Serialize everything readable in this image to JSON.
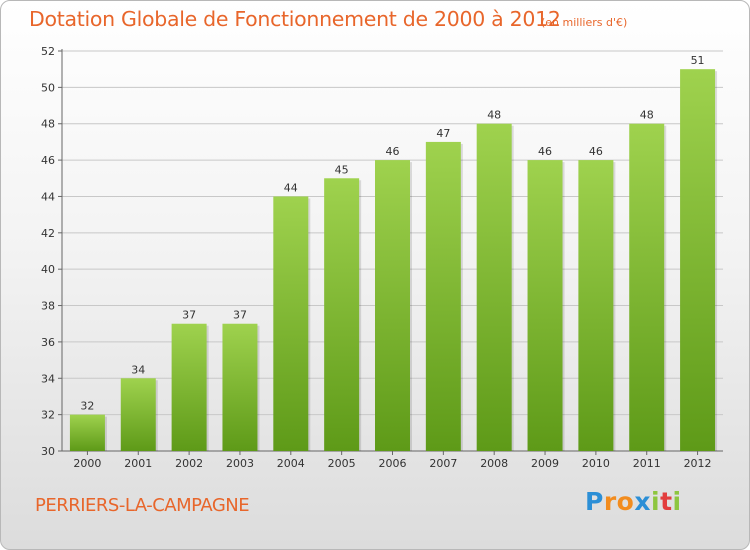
{
  "header": {
    "title": "Dotation Globale de Fonctionnement de 2000 à 2012",
    "unit": "(en milliers d'€)"
  },
  "footer": {
    "commune": "PERRIERS-LA-CAMPAGNE",
    "logo_letters": [
      "P",
      "r",
      "o",
      "x",
      "i",
      "t",
      "i"
    ],
    "logo_colors": [
      "#2c8fd6",
      "#f28c1e",
      "#f28c1e",
      "#2c8fd6",
      "#8dc63f",
      "#e23d3d",
      "#8dc63f"
    ]
  },
  "colors": {
    "title": "#e8662b",
    "bar_top": "#9fd24e",
    "bar_bottom": "#5e9a18",
    "grid": "#c8c8c8"
  },
  "chart_data": {
    "type": "bar",
    "categories": [
      "2000",
      "2001",
      "2002",
      "2003",
      "2004",
      "2005",
      "2006",
      "2007",
      "2008",
      "2009",
      "2010",
      "2011",
      "2012"
    ],
    "values": [
      32,
      34,
      37,
      37,
      44,
      45,
      46,
      47,
      48,
      46,
      46,
      48,
      51
    ],
    "title": "Dotation Globale de Fonctionnement de 2000 à 2012",
    "subtitle": "(en milliers d'€)",
    "xlabel": "",
    "ylabel": "",
    "ylim": [
      30,
      52
    ],
    "yticks": [
      30,
      32,
      34,
      36,
      38,
      40,
      42,
      44,
      46,
      48,
      50,
      52
    ],
    "grid": true,
    "data_labels": true
  }
}
